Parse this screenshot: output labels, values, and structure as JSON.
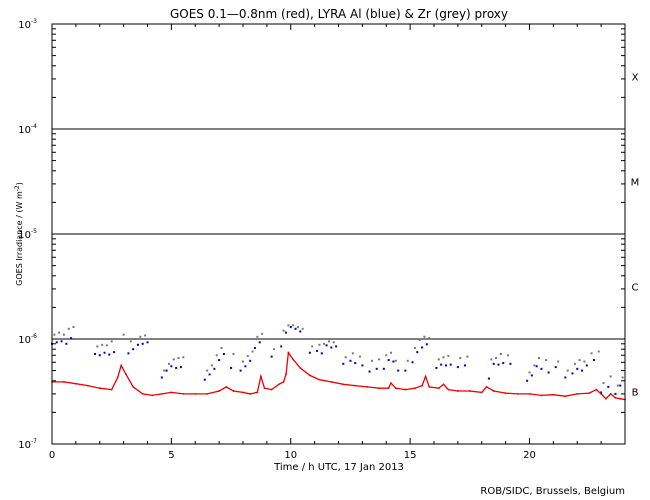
{
  "chart_data": {
    "type": "scatter",
    "title": "GOES 0.1—0.8nm (red), LYRA Al (blue) & Zr (grey) proxy",
    "xlabel": "Time / h UTC, 17 Jan 2013",
    "ylabel_text": "GOES Irradiance / (W m",
    "ylabel_sup": "-2",
    "ylabel_close": ")",
    "xlim": [
      0,
      24
    ],
    "ylim_log10": [
      -7,
      -3
    ],
    "y_scale": "log",
    "x_ticks": [
      {
        "value": 0,
        "label": "0"
      },
      {
        "value": 5,
        "label": "5"
      },
      {
        "value": 10,
        "label": "10"
      },
      {
        "value": 15,
        "label": "15"
      },
      {
        "value": 20,
        "label": "20"
      }
    ],
    "y_ticks": [
      {
        "exponent": -7,
        "base": "10",
        "sup": "-7"
      },
      {
        "exponent": -6,
        "base": "10",
        "sup": "-6"
      },
      {
        "exponent": -5,
        "base": "10",
        "sup": "-5"
      },
      {
        "exponent": -4,
        "base": "10",
        "sup": "-4"
      },
      {
        "exponent": -3,
        "base": "10",
        "sup": "-3"
      }
    ],
    "class_lines_log10": [
      -6,
      -5,
      -4
    ],
    "flare_classes": [
      {
        "label": "X",
        "log10": -3.5
      },
      {
        "label": "M",
        "log10": -4.5
      },
      {
        "label": "C",
        "log10": -5.5
      },
      {
        "label": "B",
        "log10": -6.5
      }
    ],
    "colors": {
      "goes": "#ee0000",
      "lyra_al": "#0000cc",
      "lyra_zr": "#777777",
      "axis": "#000000"
    },
    "series": [
      {
        "key": "goes",
        "x": [
          0.0,
          0.5,
          1.0,
          1.5,
          2.0,
          2.5,
          2.75,
          2.9,
          3.1,
          3.4,
          3.8,
          4.2,
          4.6,
          5.0,
          5.5,
          6.0,
          6.5,
          7.0,
          7.3,
          7.6,
          8.0,
          8.3,
          8.6,
          8.75,
          8.9,
          9.2,
          9.5,
          9.7,
          9.8,
          9.9,
          10.1,
          10.4,
          10.8,
          11.2,
          11.7,
          12.2,
          12.7,
          13.2,
          13.7,
          14.1,
          14.2,
          14.4,
          14.8,
          15.2,
          15.5,
          15.65,
          15.8,
          16.2,
          16.4,
          16.6,
          17.0,
          17.5,
          18.0,
          18.2,
          18.5,
          19.0,
          19.5,
          20.0,
          20.5,
          21.0,
          21.5,
          22.0,
          22.5,
          22.8,
          23.0,
          23.2,
          23.4,
          23.6,
          23.8,
          24.0
        ],
        "y": [
          3.9e-07,
          3.9e-07,
          3.75e-07,
          3.6e-07,
          3.4e-07,
          3.3e-07,
          4.3e-07,
          5.6e-07,
          4.6e-07,
          3.5e-07,
          3e-07,
          2.9e-07,
          3e-07,
          3.1e-07,
          3e-07,
          3e-07,
          3e-07,
          3.2e-07,
          3.5e-07,
          3.2e-07,
          3.1e-07,
          3e-07,
          3.1e-07,
          4.4e-07,
          3.4e-07,
          3.3e-07,
          3.7e-07,
          3.9e-07,
          4.6e-07,
          7.4e-07,
          6.4e-07,
          5.3e-07,
          4.5e-07,
          4.1e-07,
          3.9e-07,
          3.7e-07,
          3.6e-07,
          3.5e-07,
          3.4e-07,
          3.4e-07,
          3.8e-07,
          3.4e-07,
          3.3e-07,
          3.4e-07,
          3.6e-07,
          4.4e-07,
          3.5e-07,
          3.4e-07,
          3.7e-07,
          3.3e-07,
          3.2e-07,
          3.2e-07,
          3.1e-07,
          3.5e-07,
          3.2e-07,
          3.05e-07,
          3e-07,
          3e-07,
          2.9e-07,
          2.95e-07,
          2.85e-07,
          3e-07,
          3.05e-07,
          3.3e-07,
          3e-07,
          2.7e-07,
          3e-07,
          2.75e-07,
          2.7e-07,
          2.65e-07
        ]
      },
      {
        "key": "lyra_al",
        "x": [
          0.0,
          0.2,
          0.4,
          0.6,
          0.8,
          1.8,
          2.0,
          2.2,
          2.4,
          2.6,
          3.2,
          3.4,
          3.6,
          3.8,
          4.0,
          4.6,
          4.8,
          5.0,
          5.2,
          5.4,
          6.4,
          6.6,
          6.8,
          7.0,
          7.2,
          7.5,
          7.9,
          8.1,
          8.3,
          8.5,
          8.7,
          9.2,
          9.6,
          9.8,
          10.0,
          10.2,
          10.4,
          10.8,
          11.1,
          11.3,
          11.5,
          11.7,
          11.9,
          12.2,
          12.5,
          12.7,
          13.0,
          13.3,
          13.6,
          13.9,
          14.1,
          14.3,
          14.5,
          14.8,
          15.1,
          15.3,
          15.5,
          15.7,
          16.1,
          16.3,
          16.5,
          16.7,
          17.0,
          17.3,
          18.3,
          18.5,
          18.7,
          18.9,
          19.2,
          19.9,
          20.1,
          20.3,
          20.5,
          20.8,
          21.1,
          21.5,
          21.8,
          22.0,
          22.2,
          22.4,
          22.7,
          23.0,
          23.3,
          23.6,
          23.8
        ],
        "y": [
          9e-07,
          9.3e-07,
          9.5e-07,
          9e-07,
          1.02e-06,
          7.2e-07,
          7e-07,
          7.4e-07,
          7.1e-07,
          7.5e-07,
          7.3e-07,
          8e-07,
          8.8e-07,
          9e-07,
          9.3e-07,
          4.3e-07,
          5e-07,
          5.5e-07,
          5.3e-07,
          5.4e-07,
          4.1e-07,
          4.6e-07,
          5.2e-07,
          6.3e-07,
          7.2e-07,
          5.3e-07,
          5e-07,
          5.5e-07,
          6.2e-07,
          8.2e-07,
          9.3e-07,
          6.8e-07,
          8.5e-07,
          1.15e-06,
          1.3e-06,
          1.25e-06,
          1.18e-06,
          7.4e-07,
          7.7e-07,
          7.3e-07,
          8.7e-07,
          8.3e-07,
          8.5e-07,
          5.8e-07,
          6.2e-07,
          5.9e-07,
          5.6e-07,
          4.9e-07,
          5.2e-07,
          5.2e-07,
          6.3e-07,
          6.1e-07,
          5e-07,
          5e-07,
          6e-07,
          7.5e-07,
          8.3e-07,
          8.9e-07,
          5.3e-07,
          5.7e-07,
          5.6e-07,
          5.7e-07,
          5.4e-07,
          5.6e-07,
          4.2e-07,
          5.8e-07,
          5.7e-07,
          5.9e-07,
          5.8e-07,
          4e-07,
          4.5e-07,
          5.5e-07,
          5.2e-07,
          4.8e-07,
          5.4e-07,
          4.3e-07,
          4.7e-07,
          5.2e-07,
          5e-07,
          5.6e-07,
          6.3e-07,
          3.1e-07,
          3.5e-07,
          3e-07,
          3.6e-07
        ]
      },
      {
        "key": "lyra_zr",
        "x": [
          0.1,
          0.3,
          0.5,
          0.7,
          0.9,
          1.9,
          2.1,
          2.3,
          2.5,
          3.0,
          3.3,
          3.5,
          3.7,
          3.9,
          4.7,
          4.9,
          5.1,
          5.3,
          5.5,
          6.5,
          6.7,
          6.9,
          7.1,
          7.6,
          8.0,
          8.2,
          8.4,
          8.6,
          8.8,
          9.3,
          9.7,
          9.9,
          10.1,
          10.3,
          10.5,
          10.9,
          11.2,
          11.4,
          11.6,
          11.8,
          12.3,
          12.6,
          12.9,
          13.4,
          13.7,
          14.0,
          14.2,
          14.4,
          14.9,
          15.2,
          15.4,
          15.6,
          15.8,
          16.2,
          16.4,
          16.6,
          17.1,
          17.4,
          18.4,
          18.6,
          18.8,
          19.1,
          20.0,
          20.2,
          20.4,
          20.7,
          21.2,
          21.6,
          21.9,
          22.1,
          22.3,
          22.6,
          22.9,
          23.1,
          23.4,
          23.7,
          23.9
        ],
        "y": [
          1.1e-06,
          1.15e-06,
          1.1e-06,
          1.25e-06,
          1.3e-06,
          8.5e-07,
          8.8e-07,
          8.7e-07,
          9.5e-07,
          1.1e-06,
          9.5e-07,
          1e-06,
          1.05e-06,
          1.08e-06,
          5e-07,
          5.8e-07,
          6.4e-07,
          6.6e-07,
          6.7e-07,
          5e-07,
          5.6e-07,
          7e-07,
          8.2e-07,
          7.2e-07,
          6.1e-07,
          6.9e-07,
          7.6e-07,
          1.05e-06,
          1.12e-06,
          8e-07,
          1.2e-06,
          1.35e-06,
          1.35e-06,
          1.3e-06,
          1.25e-06,
          8.5e-07,
          8.8e-07,
          9e-07,
          9.5e-07,
          9.3e-07,
          6.7e-07,
          7.3e-07,
          6.8e-07,
          6.2e-07,
          6.4e-07,
          7e-07,
          7.4e-07,
          6.2e-07,
          6.2e-07,
          8.2e-07,
          9.8e-07,
          1.05e-06,
          1.02e-06,
          6.4e-07,
          6.7e-07,
          6.9e-07,
          6.6e-07,
          6.8e-07,
          6.4e-07,
          6.6e-07,
          7.2e-07,
          7e-07,
          4.8e-07,
          5.6e-07,
          6.6e-07,
          6.3e-07,
          6.1e-07,
          5e-07,
          5.8e-07,
          6.3e-07,
          6.1e-07,
          7.3e-07,
          7.6e-07,
          3.8e-07,
          4.4e-07,
          3.6e-07,
          4.3e-07
        ]
      }
    ]
  },
  "footer": {
    "credit": "ROB/SIDC, Brussels, Belgium"
  }
}
